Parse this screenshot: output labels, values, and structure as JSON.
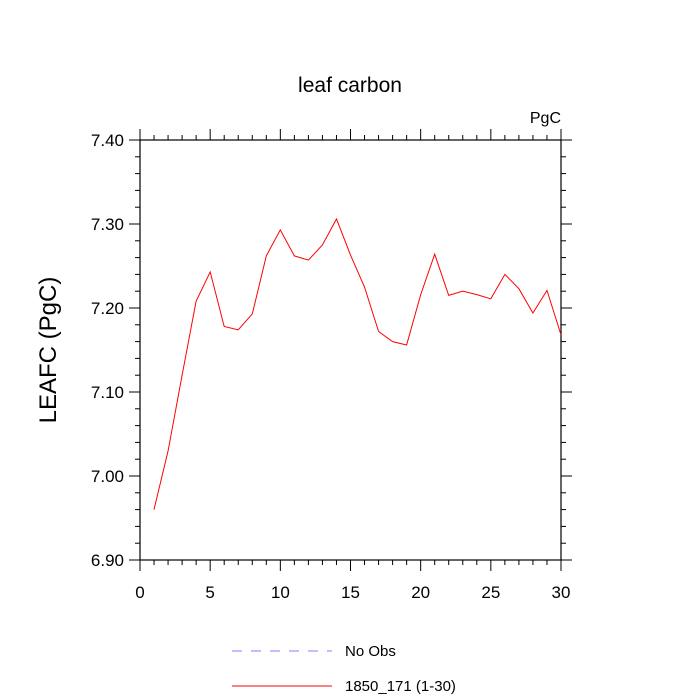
{
  "chart_data": {
    "type": "line",
    "title": "leaf carbon",
    "units_label": "PgC",
    "ylabel": "LEAFC  (PgC)",
    "xlabel": "",
    "xlim": [
      0,
      30
    ],
    "ylim": [
      6.9,
      7.4
    ],
    "x_ticks": [
      0,
      5,
      10,
      15,
      20,
      25,
      30
    ],
    "x_tick_labels": [
      "0",
      "5",
      "10",
      "15",
      "20",
      "25",
      "30"
    ],
    "y_ticks": [
      6.9,
      7.0,
      7.1,
      7.2,
      7.3,
      7.4
    ],
    "y_tick_labels": [
      "6.90",
      "7.00",
      "7.10",
      "7.20",
      "7.30",
      "7.40"
    ],
    "grid": false,
    "legend_position": "bottom",
    "series": [
      {
        "name": "1850_171 (1-30)",
        "color": "#ff0000",
        "dash": "solid",
        "x": [
          1,
          2,
          3,
          4,
          5,
          6,
          7,
          8,
          9,
          10,
          11,
          12,
          13,
          14,
          15,
          16,
          17,
          18,
          19,
          20,
          21,
          22,
          23,
          24,
          25,
          26,
          27,
          28,
          29,
          30
        ],
        "values": [
          6.96,
          7.03,
          7.12,
          7.208,
          7.243,
          7.178,
          7.174,
          7.193,
          7.262,
          7.293,
          7.262,
          7.257,
          7.275,
          7.306,
          7.263,
          7.225,
          7.172,
          7.16,
          7.156,
          7.216,
          7.264,
          7.215,
          7.22,
          7.216,
          7.211,
          7.24,
          7.223,
          7.194,
          7.221,
          7.168
        ]
      }
    ],
    "legend": [
      {
        "label": "No Obs",
        "color": "#8080ff",
        "dash": "dashed"
      },
      {
        "label": "1850_171 (1-30)",
        "color": "#ff0000",
        "dash": "solid"
      }
    ]
  }
}
